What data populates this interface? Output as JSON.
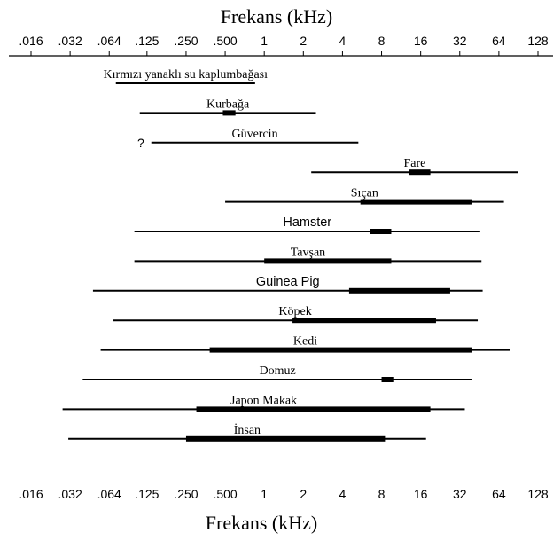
{
  "chart_data": {
    "type": "range",
    "title_top": "Frekans (kHz)",
    "title_bottom": "Frekans (kHz)",
    "x_scale": "log2",
    "xlim": [
      0.016,
      128
    ],
    "ticks": [
      {
        "value": 0.016,
        "label": ".016",
        "label_bottom": ".016"
      },
      {
        "value": 0.032,
        "label": ".032",
        "label_bottom": ".032"
      },
      {
        "value": 0.064,
        "label": ".064",
        "label_bottom": ".064"
      },
      {
        "value": 0.125,
        "label": ".125",
        "label_bottom": ".125"
      },
      {
        "value": 0.25,
        "label": ".250",
        "label_bottom": ".250"
      },
      {
        "value": 0.5,
        "label": ".500",
        "label_bottom": ".500"
      },
      {
        "value": 1,
        "label": "1",
        "label_bottom": "1"
      },
      {
        "value": 2,
        "label": "2",
        "label_bottom": "2"
      },
      {
        "value": 4,
        "label": "4",
        "label_bottom": "4"
      },
      {
        "value": 8,
        "label": "8",
        "label_bottom": "8"
      },
      {
        "value": 16,
        "label": "16",
        "label_bottom": "16"
      },
      {
        "value": 32,
        "label": "32",
        "label_bottom": "32"
      },
      {
        "value": 64,
        "label": "64",
        "label_bottom": "64"
      },
      {
        "value": 128,
        "label": "128",
        "label_bottom": "128"
      }
    ],
    "series": [
      {
        "name": "Kırmızı yanaklı su kaplumbağası",
        "font": "serif",
        "range": [
          0.072,
          0.85
        ],
        "best": null
      },
      {
        "name": "Kurbağa",
        "font": "serif",
        "range": [
          0.11,
          2.5
        ],
        "best": [
          0.48,
          0.6
        ]
      },
      {
        "name": "Güvercin",
        "font": "serif",
        "range": [
          0.135,
          5.3
        ],
        "best": null,
        "note": "?"
      },
      {
        "name": "Fare",
        "font": "serif",
        "range": [
          2.3,
          90
        ],
        "best": [
          13,
          19
        ]
      },
      {
        "name": "Sıçan",
        "font": "serif",
        "range": [
          0.5,
          70
        ],
        "best": [
          5.5,
          40
        ]
      },
      {
        "name": "Hamster",
        "font": "sans",
        "range": [
          0.1,
          46
        ],
        "best": [
          6.5,
          9.5
        ]
      },
      {
        "name": "Tavşan",
        "font": "serif",
        "range": [
          0.1,
          47
        ],
        "best": [
          1,
          9.5
        ]
      },
      {
        "name": "Guinea Pig",
        "font": "sans",
        "range": [
          0.048,
          48
        ],
        "best": [
          4.5,
          27
        ]
      },
      {
        "name": "Köpek",
        "font": "serif",
        "range": [
          0.068,
          44
        ],
        "best": [
          1.65,
          21
        ]
      },
      {
        "name": "Kedi",
        "font": "serif",
        "range": [
          0.055,
          78
        ],
        "best": [
          0.38,
          40
        ]
      },
      {
        "name": "Domuz",
        "font": "serif",
        "range": [
          0.04,
          40
        ],
        "best": [
          8,
          10
        ]
      },
      {
        "name": "Japon Makak",
        "font": "serif",
        "range": [
          0.028,
          35
        ],
        "best": [
          0.3,
          19
        ]
      },
      {
        "name": "İnsan",
        "font": "serif",
        "range": [
          0.031,
          17.6
        ],
        "best": [
          0.25,
          8.5
        ]
      }
    ]
  }
}
